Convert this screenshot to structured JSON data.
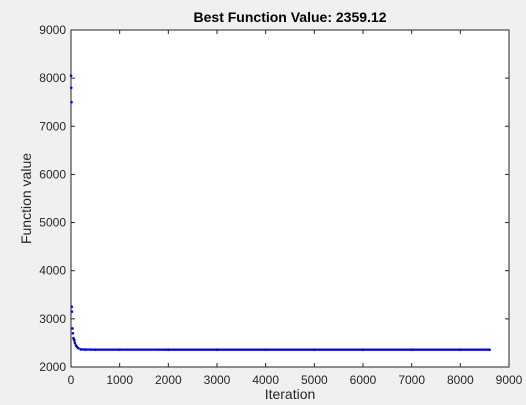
{
  "chart_data": {
    "type": "scatter",
    "title": "Best Function Value: 2359.12",
    "xlabel": "Iteration",
    "ylabel": "Function value",
    "xlim": [
      0,
      9000
    ],
    "ylim": [
      2000,
      9000
    ],
    "xticks": [
      "0",
      "1000",
      "2000",
      "3000",
      "4000",
      "5000",
      "6000",
      "7000",
      "8000",
      "9000"
    ],
    "yticks": [
      "2000",
      "3000",
      "4000",
      "5000",
      "6000",
      "7000",
      "8000",
      "9000"
    ],
    "grid": false,
    "marker_color": "#0000ff",
    "series": [
      {
        "x": [
          1,
          5,
          10,
          15,
          20,
          30,
          40,
          50,
          60,
          70,
          80,
          100,
          120,
          150,
          200,
          300,
          500,
          1000,
          2000,
          3000,
          4000,
          5000,
          6000,
          7000,
          8000,
          8600
        ],
        "y": [
          8050,
          7800,
          7500,
          3250,
          3150,
          2800,
          2700,
          2600,
          2580,
          2550,
          2500,
          2450,
          2420,
          2390,
          2365,
          2362,
          2360,
          2360,
          2359.5,
          2359.3,
          2359.2,
          2359.2,
          2359.12,
          2359.12,
          2359.12,
          2359.12
        ]
      }
    ]
  }
}
